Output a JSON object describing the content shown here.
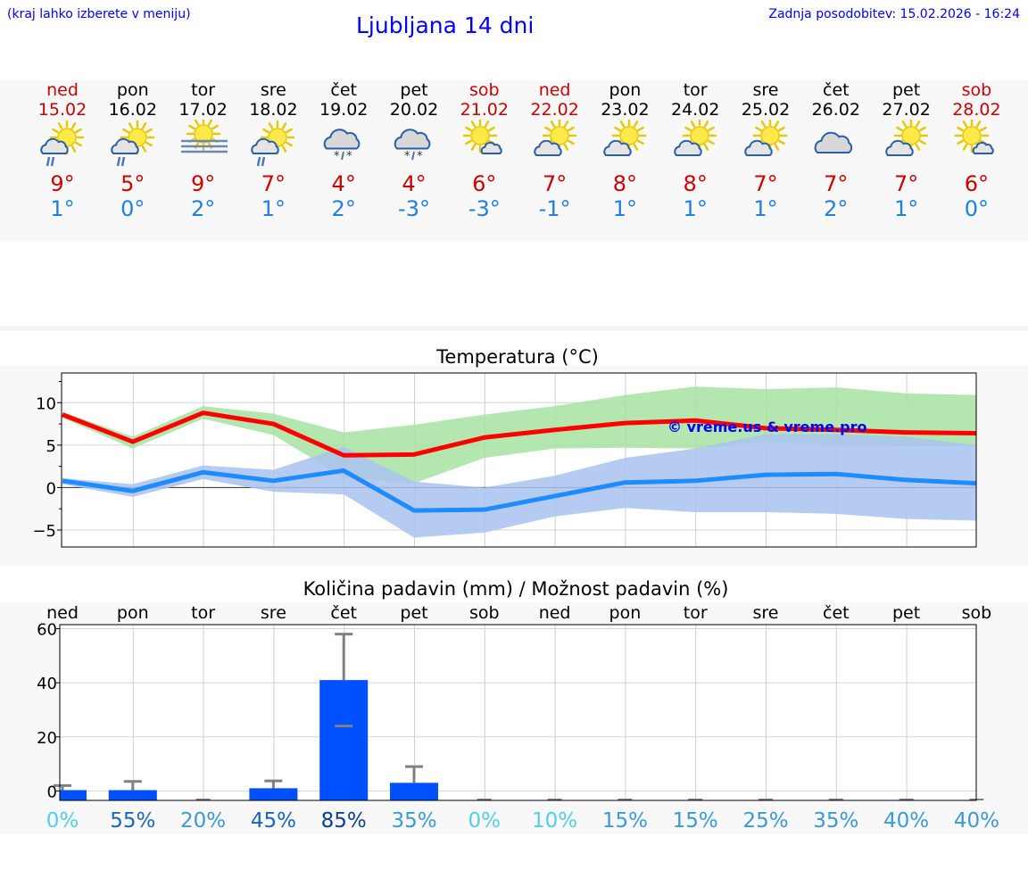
{
  "header": {
    "hint": "(kraj lahko izberete v meniju)",
    "title": "Ljubljana 14 dni",
    "updated": "Zadnja posodobitev: 15.02.2026 - 16:24"
  },
  "days": [
    {
      "name": "ned",
      "date": "15.02",
      "weekend": true,
      "icon": "sun-cloud-rain-icon",
      "tmax": "9°",
      "tmin": "1°"
    },
    {
      "name": "pon",
      "date": "16.02",
      "weekend": false,
      "icon": "sun-cloud-rain-icon",
      "tmax": "5°",
      "tmin": "0°"
    },
    {
      "name": "tor",
      "date": "17.02",
      "weekend": false,
      "icon": "sun-fog-icon",
      "tmax": "9°",
      "tmin": "2°"
    },
    {
      "name": "sre",
      "date": "18.02",
      "weekend": false,
      "icon": "sun-cloud-rain-icon",
      "tmax": "7°",
      "tmin": "1°"
    },
    {
      "name": "čet",
      "date": "19.02",
      "weekend": false,
      "icon": "cloud-sleet-icon",
      "tmax": "4°",
      "tmin": "2°"
    },
    {
      "name": "pet",
      "date": "20.02",
      "weekend": false,
      "icon": "cloud-sleet-icon",
      "tmax": "4°",
      "tmin": "-3°"
    },
    {
      "name": "sob",
      "date": "21.02",
      "weekend": true,
      "icon": "sun-small-cloud-icon",
      "tmax": "6°",
      "tmin": "-3°"
    },
    {
      "name": "ned",
      "date": "22.02",
      "weekend": true,
      "icon": "sun-cloud-icon",
      "tmax": "7°",
      "tmin": "-1°"
    },
    {
      "name": "pon",
      "date": "23.02",
      "weekend": false,
      "icon": "sun-cloud-icon",
      "tmax": "8°",
      "tmin": "1°"
    },
    {
      "name": "tor",
      "date": "24.02",
      "weekend": false,
      "icon": "sun-cloud-icon",
      "tmax": "8°",
      "tmin": "1°"
    },
    {
      "name": "sre",
      "date": "25.02",
      "weekend": false,
      "icon": "sun-cloud-icon",
      "tmax": "7°",
      "tmin": "1°"
    },
    {
      "name": "čet",
      "date": "26.02",
      "weekend": false,
      "icon": "cloud-icon",
      "tmax": "7°",
      "tmin": "2°"
    },
    {
      "name": "pet",
      "date": "27.02",
      "weekend": false,
      "icon": "sun-cloud-icon",
      "tmax": "7°",
      "tmin": "1°"
    },
    {
      "name": "sob",
      "date": "28.02",
      "weekend": true,
      "icon": "sun-small-cloud-icon",
      "tmax": "6°",
      "tmin": "0°"
    }
  ],
  "colors": {
    "tmax_line": "#ff0000",
    "tmax_band": "#a6e3a1",
    "tmin_line": "#1e8cff",
    "tmin_band": "#a9c2f0",
    "band_overlap": "#7ec4a8",
    "bars": "#0050ff",
    "error_bars": "#808080",
    "weekend": "#cc0000",
    "title": "#0000ff"
  },
  "chart_data": [
    {
      "type": "line",
      "title": "Temperatura (°C)",
      "watermark": "© vreme.us & vreme.pro",
      "x": [
        "15.02",
        "16.02",
        "17.02",
        "18.02",
        "19.02",
        "20.02",
        "21.02",
        "22.02",
        "23.02",
        "24.02",
        "25.02",
        "26.02",
        "27.02",
        "28.02"
      ],
      "ylim": [
        -7,
        13.5
      ],
      "yticks": [
        "−5",
        "0",
        "5",
        "10"
      ],
      "grid": true,
      "series": [
        {
          "values": [
            8.6,
            5.4,
            8.8,
            7.5,
            3.8,
            3.9,
            5.9,
            6.8,
            7.6,
            7.9,
            7.0,
            6.8,
            6.5,
            6.4
          ],
          "band_low": [
            8.2,
            4.6,
            8.1,
            6.2,
            1.2,
            0.5,
            3.5,
            4.6,
            4.7,
            4.6,
            5.4,
            5.0,
            4.9,
            4.9
          ],
          "band_high": [
            8.9,
            6.0,
            9.6,
            8.7,
            6.5,
            7.4,
            8.6,
            9.6,
            10.9,
            11.9,
            11.6,
            11.8,
            11.1,
            10.9
          ]
        },
        {
          "values": [
            0.8,
            -0.4,
            1.8,
            0.8,
            2.0,
            -2.7,
            -2.6,
            -1.0,
            0.6,
            0.8,
            1.5,
            1.6,
            0.9,
            0.5
          ],
          "band_low": [
            0.4,
            -1.1,
            1.0,
            -0.5,
            -0.8,
            -5.9,
            -5.3,
            -3.4,
            -2.4,
            -2.9,
            -2.9,
            -3.1,
            -3.7,
            -3.9
          ],
          "band_high": [
            1.1,
            0.4,
            2.6,
            2.1,
            4.8,
            0.7,
            0.0,
            1.4,
            3.5,
            4.6,
            6.3,
            6.3,
            6.0,
            5.0
          ]
        }
      ]
    },
    {
      "type": "bar",
      "title": "Količina padavin (mm) / Možnost padavin (%)",
      "categories": [
        "ned",
        "pon",
        "tor",
        "sre",
        "čet",
        "pet",
        "sob",
        "ned",
        "pon",
        "tor",
        "sre",
        "čet",
        "pet",
        "sob"
      ],
      "values": [
        0.3,
        0.3,
        0,
        1.0,
        41.0,
        3.0,
        0,
        0,
        0,
        0,
        0,
        0,
        0,
        0
      ],
      "err_high": [
        2.0,
        3.5,
        0.3,
        3.7,
        58.0,
        9.0,
        0.3,
        0.3,
        0.3,
        0.3,
        0.3,
        0.3,
        0.3,
        0.3
      ],
      "err_low": [
        0,
        0,
        0,
        0,
        24.0,
        0,
        0,
        0,
        0,
        0,
        0,
        0,
        0,
        0
      ],
      "ylim": [
        -3.5,
        61.5
      ],
      "yticks": [
        "0",
        "20",
        "40",
        "60"
      ],
      "grid": true,
      "probability_pct": [
        "0%",
        "55%",
        "20%",
        "45%",
        "85%",
        "35%",
        "0%",
        "10%",
        "15%",
        "15%",
        "25%",
        "35%",
        "40%",
        "40%"
      ],
      "probability_values": [
        0,
        55,
        20,
        45,
        85,
        35,
        0,
        10,
        15,
        15,
        25,
        35,
        40,
        40
      ]
    }
  ]
}
